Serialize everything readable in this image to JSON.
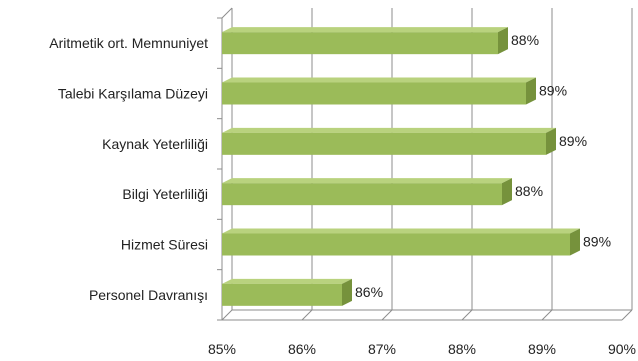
{
  "chart_data": {
    "type": "bar",
    "orientation": "horizontal",
    "style": "3d",
    "title": "",
    "xlabel": "",
    "ylabel": "",
    "categories": [
      "Aritmetik ort. Memnuniyet",
      "Talebi Karşılama Düzeyi",
      "Kaynak Yeterliliği",
      "Bilgi Yeterliliği",
      "Hizmet Süresi",
      "Personel Davranışı"
    ],
    "values": [
      88.45,
      88.8,
      89.05,
      88.5,
      89.35,
      86.5
    ],
    "value_labels": [
      "88%",
      "89%",
      "89%",
      "88%",
      "89%",
      "86%"
    ],
    "xlim": [
      85,
      90
    ],
    "xticks": [
      85,
      86,
      87,
      88,
      89,
      90
    ],
    "xtick_labels": [
      "85%",
      "86%",
      "87%",
      "88%",
      "89%",
      "90%"
    ],
    "grid": true,
    "legend": "none",
    "colors": {
      "bar_front": "#9bbb59",
      "bar_top": "#b9d27e",
      "bar_side": "#76923c",
      "gridline": "#8c8c8c",
      "text": "#222222"
    }
  }
}
